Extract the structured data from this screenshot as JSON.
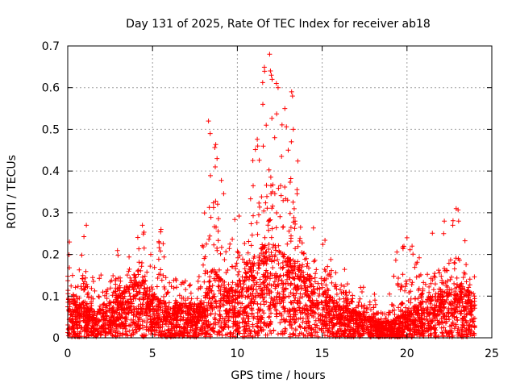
{
  "chart_data": {
    "type": "scatter",
    "title": "Day 131 of 2025, Rate Of TEC Index for receiver ab18",
    "xlabel": "GPS time / hours",
    "ylabel": "ROTI / TECUs",
    "xlim": [
      0,
      25
    ],
    "ylim": [
      0,
      0.7
    ],
    "x_ticks": [
      0,
      5,
      10,
      15,
      20,
      25
    ],
    "y_ticks": [
      0,
      0.1,
      0.2,
      0.3,
      0.4,
      0.5,
      0.6,
      0.7
    ],
    "x_tick_labels": [
      "0",
      "5",
      "10",
      "15",
      "20",
      "25"
    ],
    "y_tick_labels": [
      "0",
      "0.1",
      "0.2",
      "0.3",
      "0.4",
      "0.5",
      "0.6",
      "0.7"
    ],
    "grid": true,
    "marker": "plus",
    "color": "#ff0000",
    "envelope": {
      "x": [
        0,
        0.5,
        1,
        1.5,
        2,
        2.5,
        3,
        3.5,
        4,
        4.5,
        5,
        5.5,
        6,
        6.5,
        7,
        7.5,
        8,
        8.5,
        9,
        9.5,
        10,
        10.5,
        11,
        11.5,
        12,
        12.5,
        13,
        13.5,
        14,
        14.5,
        15,
        15.5,
        16,
        16.5,
        17,
        17.5,
        18,
        18.5,
        19,
        19.5,
        20,
        20.5,
        21,
        21.5,
        22,
        22.5,
        23,
        23.5,
        24
      ],
      "typical": [
        0.08,
        0.06,
        0.07,
        0.05,
        0.06,
        0.07,
        0.08,
        0.09,
        0.11,
        0.12,
        0.08,
        0.07,
        0.06,
        0.06,
        0.07,
        0.06,
        0.07,
        0.13,
        0.12,
        0.09,
        0.1,
        0.14,
        0.15,
        0.17,
        0.18,
        0.16,
        0.15,
        0.14,
        0.12,
        0.11,
        0.1,
        0.08,
        0.06,
        0.06,
        0.05,
        0.04,
        0.04,
        0.03,
        0.03,
        0.04,
        0.05,
        0.06,
        0.07,
        0.08,
        0.09,
        0.1,
        0.1,
        0.09,
        0.08
      ],
      "max": [
        0.23,
        0.12,
        0.27,
        0.14,
        0.16,
        0.22,
        0.24,
        0.2,
        0.25,
        0.27,
        0.2,
        0.26,
        0.15,
        0.14,
        0.14,
        0.12,
        0.27,
        0.52,
        0.43,
        0.25,
        0.31,
        0.36,
        0.46,
        0.68,
        0.64,
        0.62,
        0.59,
        0.45,
        0.31,
        0.3,
        0.26,
        0.26,
        0.18,
        0.16,
        0.14,
        0.12,
        0.12,
        0.1,
        0.11,
        0.23,
        0.25,
        0.21,
        0.19,
        0.27,
        0.24,
        0.28,
        0.31,
        0.22,
        0.15
      ]
    },
    "outliers": [
      [
        0.1,
        0.23
      ],
      [
        1.1,
        0.27
      ],
      [
        4.4,
        0.27
      ],
      [
        5.5,
        0.26
      ],
      [
        8.3,
        0.52
      ],
      [
        8.4,
        0.49
      ],
      [
        8.8,
        0.43
      ],
      [
        8.7,
        0.41
      ],
      [
        11.2,
        0.46
      ],
      [
        11.5,
        0.56
      ],
      [
        11.7,
        0.51
      ],
      [
        11.9,
        0.68
      ],
      [
        11.95,
        0.64
      ],
      [
        12.0,
        0.63
      ],
      [
        12.05,
        0.62
      ],
      [
        12.3,
        0.61
      ],
      [
        12.4,
        0.6
      ],
      [
        12.8,
        0.55
      ],
      [
        13.2,
        0.59
      ],
      [
        13.25,
        0.58
      ],
      [
        13.3,
        0.5
      ],
      [
        12.2,
        0.48
      ],
      [
        13.0,
        0.45
      ],
      [
        20.0,
        0.24
      ],
      [
        20.3,
        0.22
      ],
      [
        22.2,
        0.28
      ],
      [
        22.9,
        0.31
      ],
      [
        22.7,
        0.27
      ]
    ]
  }
}
